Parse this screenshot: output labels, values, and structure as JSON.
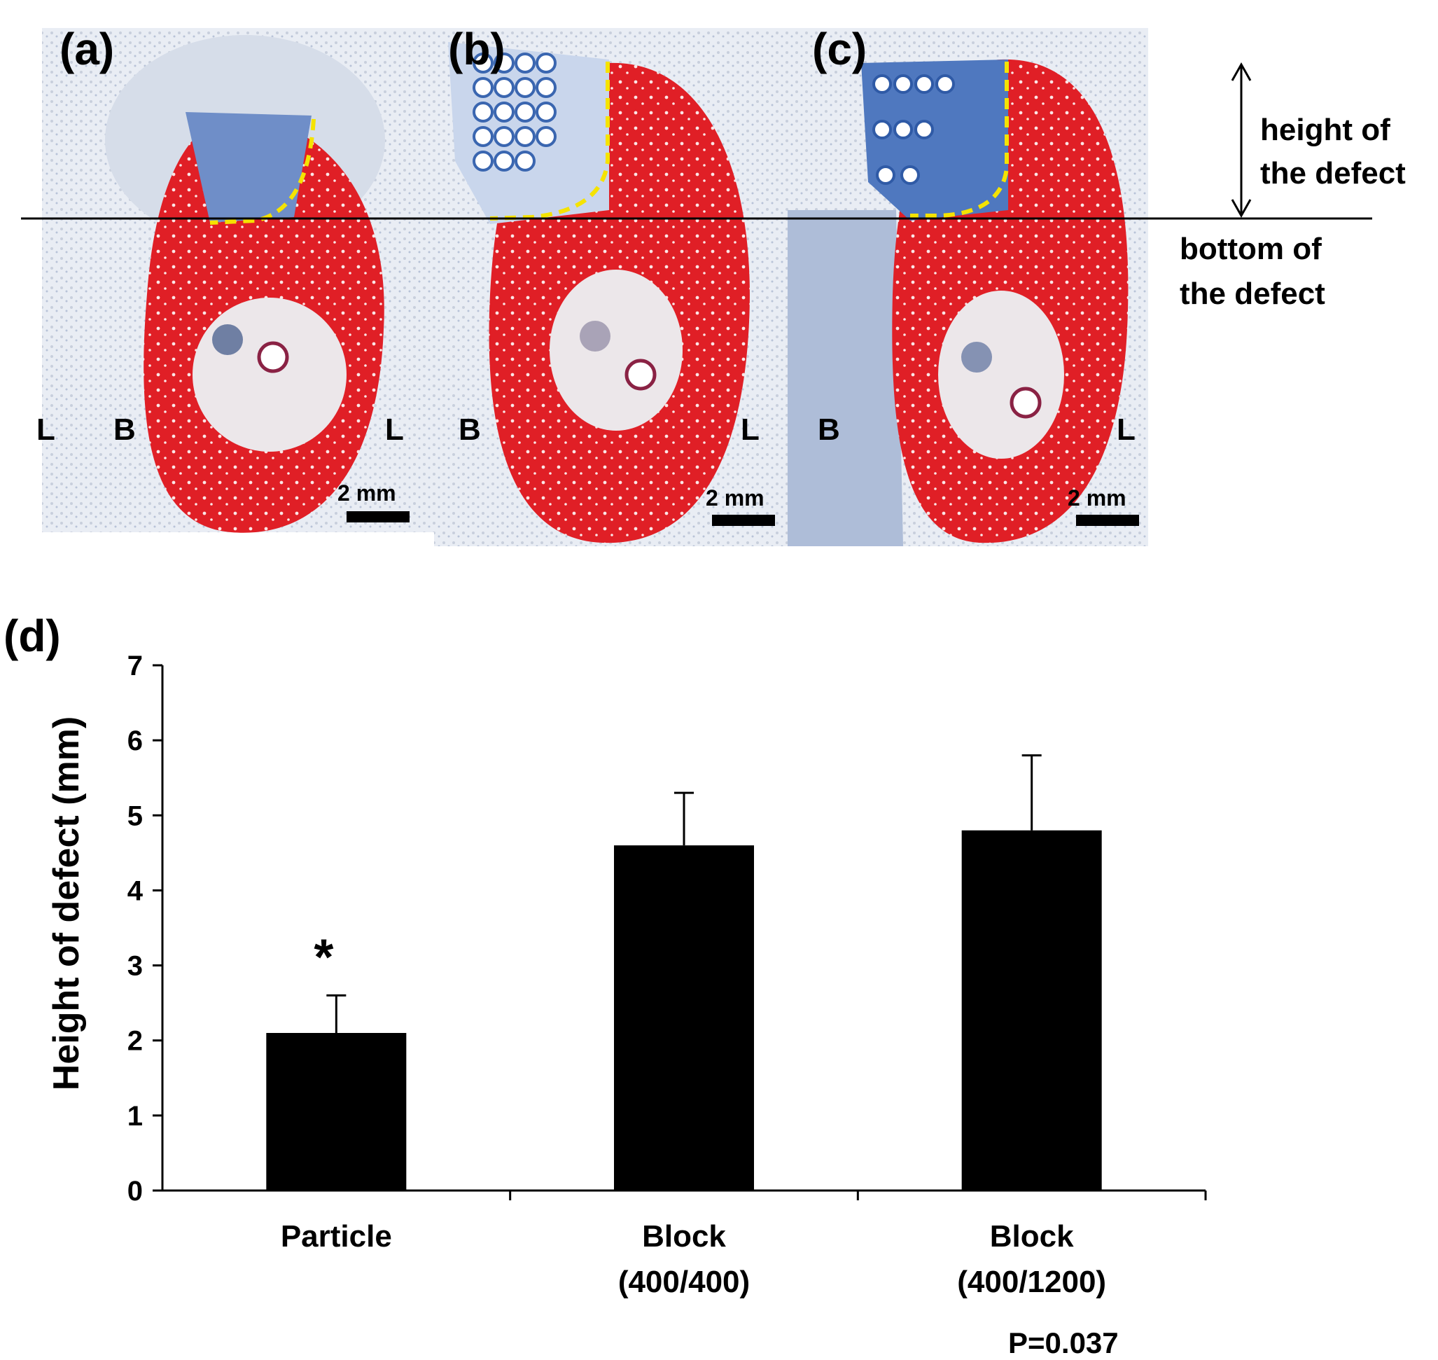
{
  "figure": {
    "panels": [
      {
        "label": "(a)",
        "letter_left": "L",
        "letter_mid": "B",
        "letter_right": "L",
        "scale": "2 mm"
      },
      {
        "label": "(b)",
        "letter_left": "B",
        "letter_right": "L",
        "scale": "2 mm"
      },
      {
        "label": "(c)",
        "letter_left": "B",
        "letter_right": "L",
        "scale": "2 mm"
      }
    ],
    "annotations": {
      "height_of_defect_1": "height of",
      "height_of_defect_2": "the defect",
      "bottom_of_defect_1": "bottom of",
      "bottom_of_defect_2": "the defect"
    },
    "panel_d_label": "(d)"
  },
  "colors": {
    "bone_red": "#e01f26",
    "stain_blue": "#3a66b0",
    "marker_yellow": "#f5e300",
    "bar_fill": "#000000"
  },
  "chart_data": {
    "type": "bar",
    "title": "",
    "xlabel": "",
    "ylabel": "Height of defect (mm)",
    "ylim": [
      0,
      7
    ],
    "yticks": [
      "0",
      "1",
      "2",
      "3",
      "4",
      "5",
      "6",
      "7"
    ],
    "categories": [
      {
        "line1": "Particle",
        "line2": ""
      },
      {
        "line1": "Block",
        "line2": "(400/400)"
      },
      {
        "line1": "Block",
        "line2": "(400/1200)"
      }
    ],
    "values": [
      2.1,
      4.6,
      4.8
    ],
    "errors": [
      0.5,
      0.7,
      1.0
    ],
    "significance": [
      "*",
      "",
      ""
    ],
    "footnote": "P=0.037"
  }
}
